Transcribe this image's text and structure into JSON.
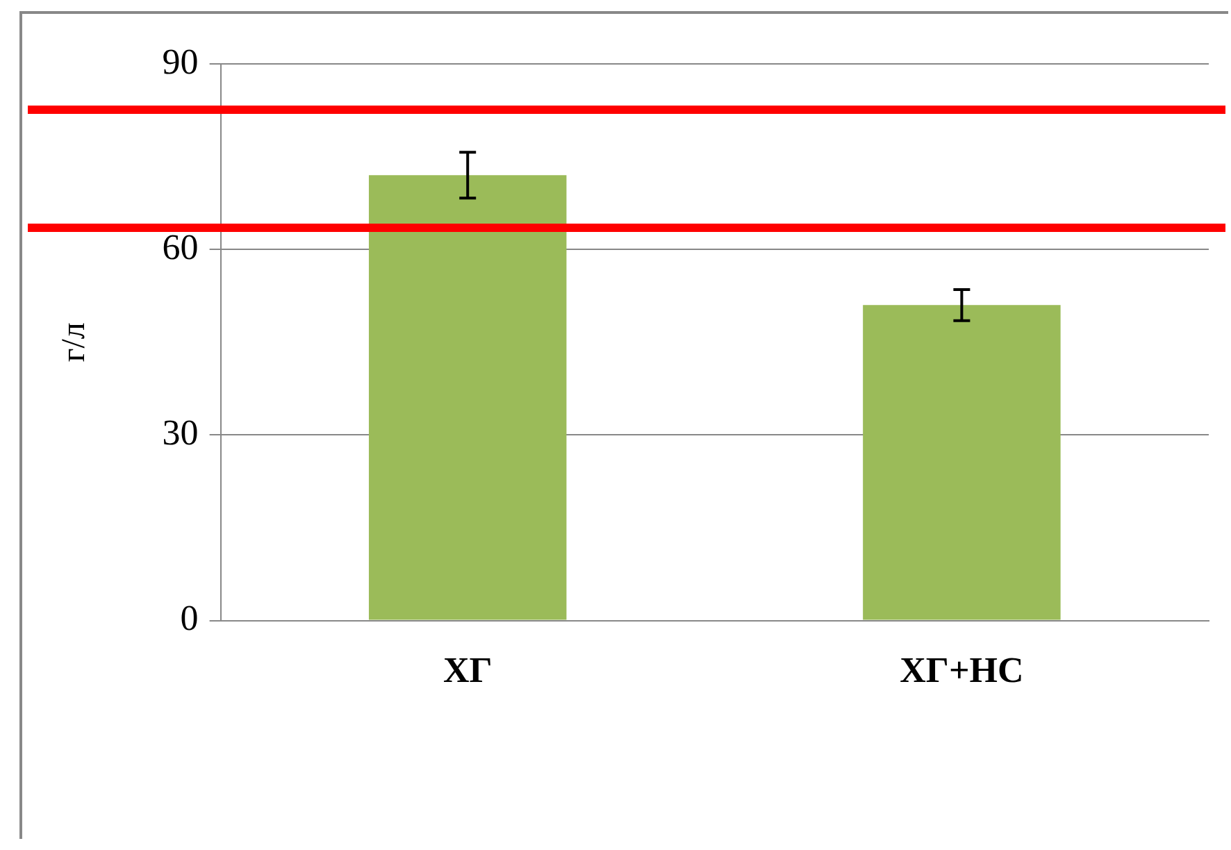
{
  "chart_data": {
    "type": "bar",
    "ylabel": "г/л",
    "categories": [
      "ХГ",
      "ХГ+НС"
    ],
    "values": [
      72,
      51
    ],
    "errors": [
      3.7,
      2.5
    ],
    "color": "#9bbb59",
    "ylim": [
      0,
      90
    ],
    "yticks": [
      0,
      30,
      60,
      90
    ],
    "grid": "y",
    "legend": false,
    "ref_lines": [
      {
        "axis": "y",
        "value": 82.6,
        "color": "#ff0000"
      },
      {
        "axis": "y",
        "value": 63.5,
        "color": "#ff0000"
      }
    ]
  }
}
